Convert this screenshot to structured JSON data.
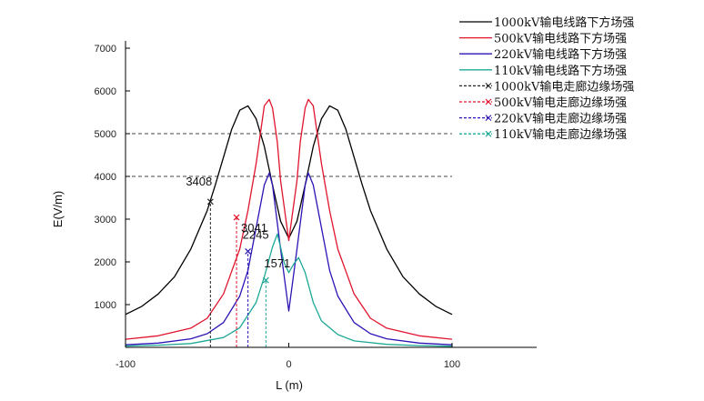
{
  "chart_data": {
    "type": "line",
    "title": "",
    "xlabel": "L (m)",
    "ylabel": "E(V/m)",
    "xlim": [
      -100,
      100
    ],
    "ylim": [
      0,
      7000
    ],
    "xticks": [
      -100,
      0,
      100
    ],
    "yticks": [
      1000,
      2000,
      3000,
      4000,
      5000,
      6000,
      7000
    ],
    "x_tick_labels": [
      "-100",
      "0",
      "100"
    ],
    "y_tick_labels": [
      "1000",
      "2000",
      "3000",
      "4000",
      "5000",
      "6000",
      "7000"
    ],
    "legend_position": "top-right",
    "series": [
      {
        "name": "1000kV输电线路下方场强",
        "color": "#000000",
        "style": "solid",
        "x": [
          -100,
          -90,
          -80,
          -70,
          -60,
          -50,
          -45,
          -40,
          -35,
          -30,
          -25,
          -20,
          -15,
          -10,
          -5,
          0,
          5,
          10,
          15,
          20,
          25,
          30,
          35,
          40,
          45,
          50,
          60,
          70,
          80,
          90,
          100
        ],
        "y": [
          770,
          960,
          1250,
          1650,
          2300,
          3200,
          3800,
          4450,
          5100,
          5550,
          5650,
          5350,
          4700,
          3800,
          2950,
          2550,
          2950,
          3800,
          4700,
          5350,
          5650,
          5550,
          5100,
          4450,
          3800,
          3200,
          2300,
          1650,
          1250,
          960,
          770
        ]
      },
      {
        "name": "500kV输电线路下方场强",
        "color": "#e0142c",
        "style": "solid",
        "x": [
          -100,
          -80,
          -60,
          -50,
          -40,
          -30,
          -25,
          -20,
          -15,
          -12,
          -10,
          -7,
          -5,
          0,
          5,
          7,
          10,
          12,
          15,
          20,
          25,
          30,
          40,
          50,
          60,
          80,
          100
        ],
        "y": [
          190,
          270,
          450,
          680,
          1250,
          2300,
          3200,
          4300,
          5650,
          5800,
          5600,
          4800,
          3900,
          2500,
          3900,
          4800,
          5600,
          5800,
          5650,
          4300,
          3200,
          2300,
          1250,
          680,
          450,
          270,
          190
        ]
      },
      {
        "name": "220kV输电线路下方场强",
        "color": "#2a14b4",
        "style": "solid",
        "x": [
          -100,
          -80,
          -60,
          -50,
          -40,
          -30,
          -25,
          -20,
          -15,
          -12,
          -10,
          -5,
          0,
          5,
          10,
          12,
          15,
          20,
          25,
          30,
          40,
          50,
          60,
          80,
          100
        ],
        "y": [
          60,
          100,
          200,
          320,
          580,
          1200,
          1800,
          2800,
          3800,
          4080,
          3800,
          2300,
          850,
          2300,
          3800,
          4080,
          3800,
          2800,
          1800,
          1200,
          580,
          320,
          200,
          100,
          60
        ]
      },
      {
        "name": "110kV输电线路下方场强",
        "color": "#1ea896",
        "style": "solid",
        "x": [
          -100,
          -80,
          -60,
          -40,
          -30,
          -20,
          -15,
          -10,
          -7,
          -5,
          -3,
          0,
          3,
          6,
          10,
          15,
          20,
          30,
          40,
          60,
          80,
          100
        ],
        "y": [
          30,
          50,
          90,
          230,
          460,
          1050,
          1650,
          2350,
          2650,
          2350,
          2000,
          1750,
          1950,
          2100,
          1750,
          1050,
          620,
          300,
          150,
          70,
          40,
          25
        ]
      }
    ],
    "boundary_series": [
      {
        "name": "1000kV输电走廊边缘场强",
        "color": "#222222",
        "x": -48,
        "y": 3408,
        "label": "3408",
        "hline": 4000
      },
      {
        "name": "500kV输电走廊边缘场强",
        "color": "#e0142c",
        "x": -32,
        "y": 3041,
        "label": "3041",
        "hline": 5000
      },
      {
        "name": "220kV输电走廊边缘场强",
        "color": "#2a14b4",
        "x": -25,
        "y": 2245,
        "label": "2245"
      },
      {
        "name": "110kV输电走廊边缘场强",
        "color": "#1ea896",
        "x": -14,
        "y": 1571,
        "label": "1571"
      }
    ]
  }
}
